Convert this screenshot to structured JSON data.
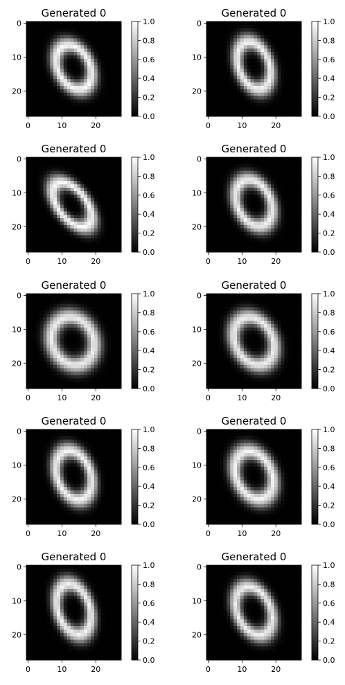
{
  "figure": {
    "panel_rows": 5,
    "panel_cols": 2,
    "colormap": "gray",
    "background_color": "#ffffff"
  },
  "chart_data": [
    {
      "type": "heatmap",
      "title": "Generated 0",
      "image_size": [
        28,
        28
      ],
      "xticks": [
        0,
        10,
        20
      ],
      "yticks": [
        0,
        10,
        20
      ],
      "clim": [
        0.0,
        1.0
      ],
      "colorbar_ticks": [
        "0.0",
        "0.2",
        "0.4",
        "0.6",
        "0.8",
        "1.0"
      ],
      "shape": {
        "description": "digit zero ring",
        "center": [
          13.5,
          13.0
        ],
        "rx": 4.8,
        "ry": 7.0,
        "tilt_deg": 27,
        "ring_width": 1.5,
        "peak": 0.92
      }
    },
    {
      "type": "heatmap",
      "title": "Generated 0",
      "image_size": [
        28,
        28
      ],
      "xticks": [
        0,
        10,
        20
      ],
      "yticks": [
        0,
        10,
        20
      ],
      "clim": [
        0.0,
        1.0
      ],
      "colorbar_ticks": [
        "0.0",
        "0.2",
        "0.4",
        "0.6",
        "0.8",
        "1.0"
      ],
      "shape": {
        "description": "digit zero ring",
        "center": [
          13.5,
          12.5
        ],
        "rx": 4.6,
        "ry": 7.3,
        "tilt_deg": 20,
        "ring_width": 1.5,
        "peak": 0.9
      }
    },
    {
      "type": "heatmap",
      "title": "Generated 0",
      "image_size": [
        28,
        28
      ],
      "xticks": [
        0,
        10,
        20
      ],
      "yticks": [
        0,
        10,
        20
      ],
      "clim": [
        0.0,
        1.0
      ],
      "colorbar_ticks": [
        "0.0",
        "0.2",
        "0.4",
        "0.6",
        "0.8",
        "1.0"
      ],
      "shape": {
        "description": "digit zero ring",
        "center": [
          13.0,
          13.5
        ],
        "rx": 4.2,
        "ry": 7.8,
        "tilt_deg": 38,
        "ring_width": 1.5,
        "peak": 0.92
      }
    },
    {
      "type": "heatmap",
      "title": "Generated 0",
      "image_size": [
        28,
        28
      ],
      "xticks": [
        0,
        10,
        20
      ],
      "yticks": [
        0,
        10,
        20
      ],
      "clim": [
        0.0,
        1.0
      ],
      "colorbar_ticks": [
        "0.0",
        "0.2",
        "0.4",
        "0.6",
        "0.8",
        "1.0"
      ],
      "shape": {
        "description": "digit zero ring",
        "center": [
          13.5,
          13.0
        ],
        "rx": 5.0,
        "ry": 7.3,
        "tilt_deg": 25,
        "ring_width": 1.5,
        "peak": 0.9
      }
    },
    {
      "type": "heatmap",
      "title": "Generated 0",
      "image_size": [
        28,
        28
      ],
      "xticks": [
        0,
        10,
        20
      ],
      "yticks": [
        0,
        10,
        20
      ],
      "clim": [
        0.0,
        1.0
      ],
      "colorbar_ticks": [
        "0.0",
        "0.2",
        "0.4",
        "0.6",
        "0.8",
        "1.0"
      ],
      "shape": {
        "description": "digit zero ring",
        "center": [
          13.2,
          13.5
        ],
        "rx": 6.2,
        "ry": 7.4,
        "tilt_deg": 25,
        "ring_width": 1.7,
        "peak": 0.88
      }
    },
    {
      "type": "heatmap",
      "title": "Generated 0",
      "image_size": [
        28,
        28
      ],
      "xticks": [
        0,
        10,
        20
      ],
      "yticks": [
        0,
        10,
        20
      ],
      "clim": [
        0.0,
        1.0
      ],
      "colorbar_ticks": [
        "0.0",
        "0.2",
        "0.4",
        "0.6",
        "0.8",
        "1.0"
      ],
      "shape": {
        "description": "digit zero ring",
        "center": [
          13.5,
          13.5
        ],
        "rx": 5.6,
        "ry": 7.5,
        "tilt_deg": 28,
        "ring_width": 1.6,
        "peak": 0.88
      }
    },
    {
      "type": "heatmap",
      "title": "Generated 0",
      "image_size": [
        28,
        28
      ],
      "xticks": [
        0,
        10,
        20
      ],
      "yticks": [
        0,
        10,
        20
      ],
      "clim": [
        0.0,
        1.0
      ],
      "colorbar_ticks": [
        "0.0",
        "0.2",
        "0.4",
        "0.6",
        "0.8",
        "1.0"
      ],
      "shape": {
        "description": "digit zero ring",
        "center": [
          13.5,
          13.0
        ],
        "rx": 5.0,
        "ry": 7.6,
        "tilt_deg": 20,
        "ring_width": 1.5,
        "peak": 0.9
      }
    },
    {
      "type": "heatmap",
      "title": "Generated 0",
      "image_size": [
        28,
        28
      ],
      "xticks": [
        0,
        10,
        20
      ],
      "yticks": [
        0,
        10,
        20
      ],
      "clim": [
        0.0,
        1.0
      ],
      "colorbar_ticks": [
        "0.0",
        "0.2",
        "0.4",
        "0.6",
        "0.8",
        "1.0"
      ],
      "shape": {
        "description": "digit zero ring",
        "center": [
          13.5,
          13.0
        ],
        "rx": 5.3,
        "ry": 7.5,
        "tilt_deg": 25,
        "ring_width": 1.6,
        "peak": 0.9
      }
    },
    {
      "type": "heatmap",
      "title": "Generated 0",
      "image_size": [
        28,
        28
      ],
      "xticks": [
        0,
        10,
        20
      ],
      "yticks": [
        0,
        10,
        20
      ],
      "clim": [
        0.0,
        1.0
      ],
      "colorbar_ticks": [
        "0.0",
        "0.2",
        "0.4",
        "0.6",
        "0.8",
        "1.0"
      ],
      "shape": {
        "description": "digit zero ring",
        "center": [
          13.5,
          12.5
        ],
        "rx": 4.8,
        "ry": 7.8,
        "tilt_deg": 18,
        "ring_width": 1.5,
        "peak": 0.9
      }
    },
    {
      "type": "heatmap",
      "title": "Generated 0",
      "image_size": [
        28,
        28
      ],
      "xticks": [
        0,
        10,
        20
      ],
      "yticks": [
        0,
        10,
        20
      ],
      "clim": [
        0.0,
        1.0
      ],
      "colorbar_ticks": [
        "0.0",
        "0.2",
        "0.4",
        "0.6",
        "0.8",
        "1.0"
      ],
      "shape": {
        "description": "digit zero ring",
        "center": [
          13.5,
          13.0
        ],
        "rx": 5.0,
        "ry": 7.6,
        "tilt_deg": 24,
        "ring_width": 1.5,
        "peak": 0.88
      }
    }
  ]
}
